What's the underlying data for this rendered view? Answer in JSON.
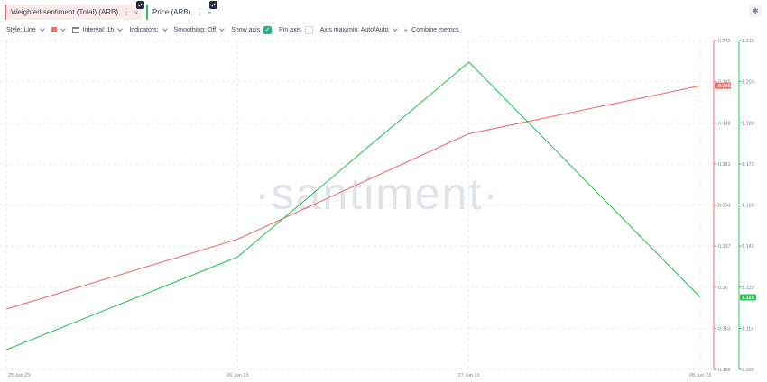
{
  "metrics": [
    {
      "label": "Weighted sentiment (Total) (ARB)",
      "color": "#f26e6e"
    },
    {
      "label": "Price (ARB)",
      "color": "#2ec75a"
    }
  ],
  "tab_menu_glyph": "⋮",
  "tab_close_glyph": "×",
  "settings_glyph": "✱",
  "toolbar": {
    "style": "Style: Line",
    "interval": "Interval: 1h",
    "indicators": "Indicators:",
    "smoothing": "Smoothing: Off",
    "show_axis": "Show axis",
    "pin_axis": "Pin axis",
    "axis_minmax": "Axis max/min: Auto/Auto",
    "combine": "Combine metrics",
    "checkmark": "✓",
    "plus": "+"
  },
  "watermark": "·santiment·",
  "chart_data": {
    "type": "line",
    "x": [
      "25 Jun 23",
      "26 Jun 23",
      "27 Jun 23",
      "28 Jun 23"
    ],
    "series": [
      {
        "name": "Weighted sentiment (Total) (ARB)",
        "color": "#f26e6e",
        "axis": "sentiment",
        "values": [
          -0.3616,
          -0.3565,
          -0.3488,
          -0.3453
        ]
      },
      {
        "name": "Price (ARB)",
        "color": "#2ec75a",
        "axis": "price",
        "values": [
          1.1061,
          1.1397,
          1.2102,
          1.1251
        ]
      }
    ],
    "axes": {
      "sentiment": {
        "ticks": [
          "-0.342",
          "-0.345",
          "-0.348",
          "-0.351",
          "-0.354",
          "-0.357",
          "-0.36",
          "-0.363",
          "-0.366"
        ],
        "min": -0.366,
        "max": -0.342,
        "last_label": "-0.345"
      },
      "price": {
        "ticks": [
          "1.218",
          "1.203",
          "1.188",
          "1.173",
          "1.158",
          "1.143",
          "1.129",
          "1.114",
          "1.099"
        ],
        "min": 1.099,
        "max": 1.218,
        "last_label": "1.125"
      }
    },
    "grid": true,
    "legend": "top-left"
  }
}
